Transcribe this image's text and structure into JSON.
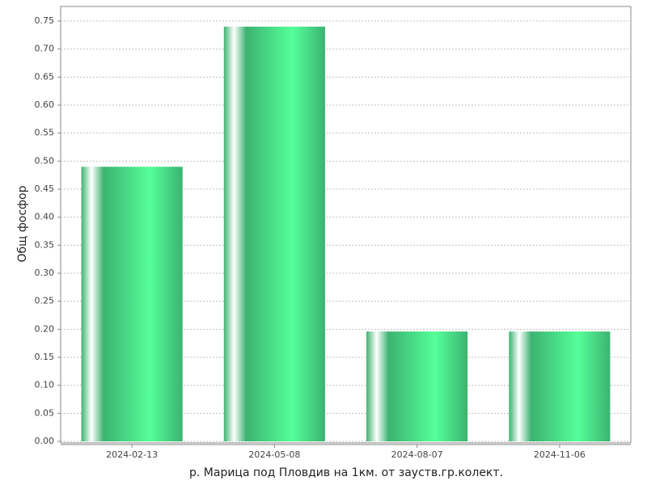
{
  "chart_data": {
    "type": "bar",
    "x_label": "р. Марица под Пловдив на 1км. от зауств.гр.колект.",
    "y_label": "Общ фосфор",
    "categories": [
      "2024-02-13",
      "2024-05-08",
      "2024-08-07",
      "2024-11-06"
    ],
    "values": [
      0.49,
      0.74,
      0.196,
      0.196
    ],
    "color": "#3cb371",
    "ylim": [
      0,
      0.776
    ],
    "yticks": [
      {
        "value": 0,
        "label": "0.00"
      },
      {
        "value": 0.05,
        "label": "0.05"
      },
      {
        "value": 0.1,
        "label": "0.10"
      },
      {
        "value": 0.15,
        "label": "0.15"
      },
      {
        "value": 0.2,
        "label": "0.20"
      },
      {
        "value": 0.25,
        "label": "0.25"
      },
      {
        "value": 0.3,
        "label": "0.30"
      },
      {
        "value": 0.35,
        "label": "0.35"
      },
      {
        "value": 0.4,
        "label": "0.40"
      },
      {
        "value": 0.45,
        "label": "0.45"
      },
      {
        "value": 0.5,
        "label": "0.50"
      },
      {
        "value": 0.55,
        "label": "0.55"
      },
      {
        "value": 0.6,
        "label": "0.60"
      },
      {
        "value": 0.65,
        "label": "0.65"
      },
      {
        "value": 0.7,
        "label": "0.70"
      },
      {
        "value": 0.75,
        "label": "0.75"
      }
    ],
    "grid": true
  }
}
